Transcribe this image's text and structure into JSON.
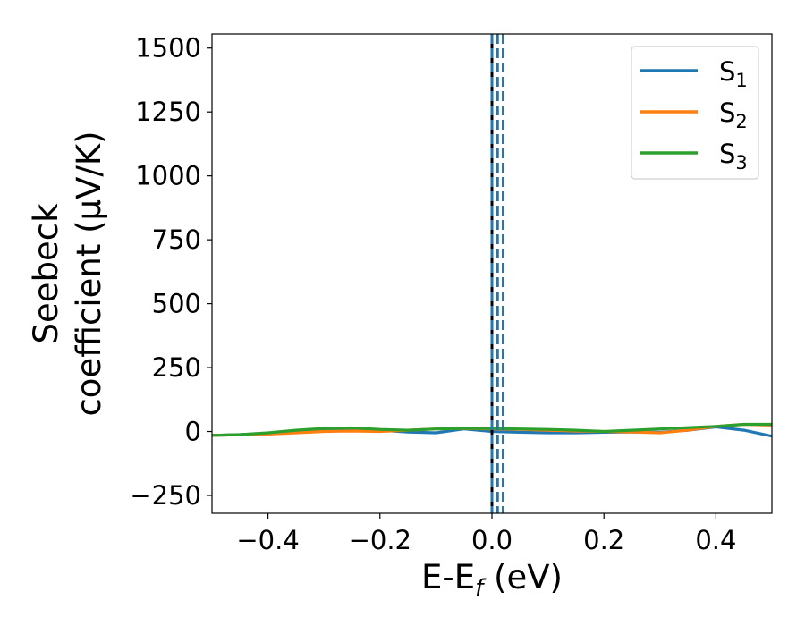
{
  "chart_data": {
    "type": "line",
    "xlabel": "E-E",
    "xlabel_sub": "f",
    "xlabel_unit": " (eV)",
    "ylabel_line1": "Seebeck",
    "ylabel_line2": "coefficient  (μV/K)",
    "xlim": [
      -0.5,
      0.5
    ],
    "ylim": [
      -320,
      1555
    ],
    "xticks": [
      -0.4,
      -0.2,
      0.0,
      0.2,
      0.4
    ],
    "xtick_labels": [
      "−0.4",
      "−0.2",
      "0.0",
      "0.2",
      "0.4"
    ],
    "yticks": [
      -250,
      0,
      250,
      500,
      750,
      1000,
      1250,
      1500
    ],
    "ytick_labels": [
      "−250",
      "0",
      "250",
      "500",
      "750",
      "1000",
      "1250",
      "1500"
    ],
    "grid": false,
    "legend_position": "top-right",
    "vlines": [
      {
        "x": 0.0,
        "style": "solid",
        "color": "#000000"
      },
      {
        "x": 0.0,
        "style": "dashed",
        "color": "#1f77b4"
      },
      {
        "x": 0.01,
        "style": "dashed",
        "color": "#1f77b4"
      },
      {
        "x": 0.02,
        "style": "dashed",
        "color": "#1f77b4"
      }
    ],
    "series": [
      {
        "name": "S",
        "sub": "1",
        "color": "#1f77b4",
        "x": [
          -0.5,
          -0.45,
          -0.4,
          -0.35,
          -0.3,
          -0.25,
          -0.2,
          -0.15,
          -0.1,
          -0.05,
          0.0,
          0.05,
          0.1,
          0.15,
          0.2,
          0.25,
          0.3,
          0.35,
          0.4,
          0.45,
          0.5
        ],
        "y": [
          -15,
          -12,
          -8,
          2,
          8,
          10,
          5,
          -2,
          -5,
          10,
          0,
          -3,
          -5,
          -5,
          -3,
          -2,
          -3,
          5,
          18,
          5,
          -18
        ]
      },
      {
        "name": "S",
        "sub": "2",
        "color": "#ff7f0e",
        "x": [
          -0.5,
          -0.45,
          -0.4,
          -0.35,
          -0.3,
          -0.25,
          -0.2,
          -0.15,
          -0.1,
          -0.05,
          0.0,
          0.05,
          0.1,
          0.15,
          0.2,
          0.25,
          0.3,
          0.35,
          0.4,
          0.45,
          0.5
        ],
        "y": [
          -15,
          -13,
          -10,
          -5,
          0,
          2,
          0,
          5,
          10,
          12,
          10,
          8,
          5,
          2,
          0,
          -2,
          -5,
          5,
          20,
          28,
          25
        ]
      },
      {
        "name": "S",
        "sub": "3",
        "color": "#2ca02c",
        "x": [
          -0.5,
          -0.45,
          -0.4,
          -0.35,
          -0.3,
          -0.25,
          -0.2,
          -0.15,
          -0.1,
          -0.05,
          0.0,
          0.05,
          0.1,
          0.15,
          0.2,
          0.25,
          0.3,
          0.35,
          0.4,
          0.45,
          0.5
        ],
        "y": [
          -15,
          -12,
          -5,
          5,
          12,
          14,
          8,
          5,
          10,
          12,
          12,
          10,
          8,
          5,
          0,
          5,
          10,
          15,
          20,
          28,
          28
        ]
      }
    ]
  }
}
